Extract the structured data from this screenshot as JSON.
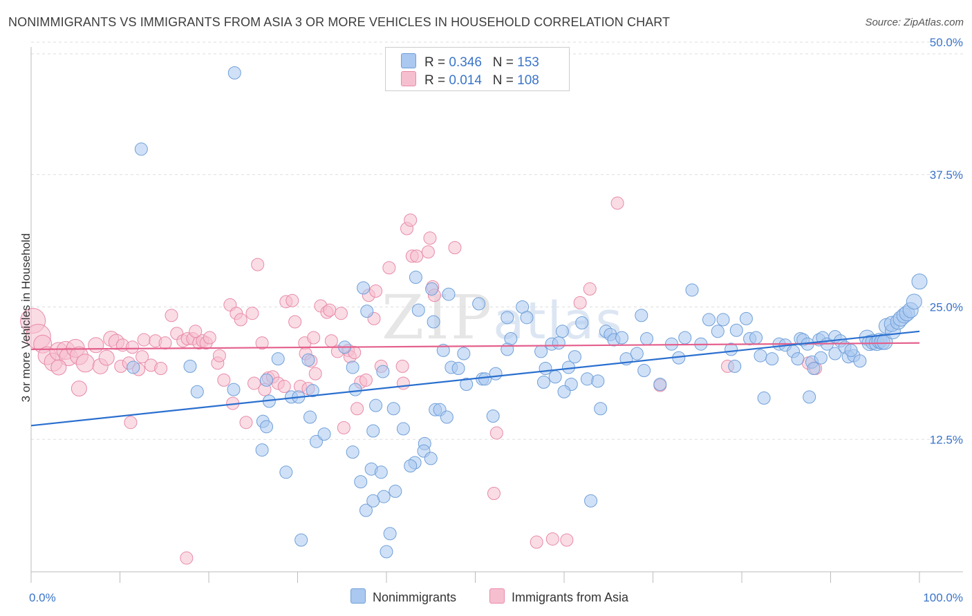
{
  "title": "NONIMMIGRANTS VS IMMIGRANTS FROM ASIA 3 OR MORE VEHICLES IN HOUSEHOLD CORRELATION CHART",
  "source": "Source: ZipAtlas.com",
  "watermark": {
    "zip": "ZIP",
    "atlas": "atlas"
  },
  "legend": {
    "series1": {
      "r_label": "R =",
      "r_value": "0.346",
      "n_label": "N =",
      "n_value": "153"
    },
    "series2": {
      "r_label": "R =",
      "r_value": "0.014",
      "n_label": "N =",
      "n_value": "108"
    }
  },
  "bottom_legend": {
    "series1": "Nonimmigrants",
    "series2": "Immigrants from Asia"
  },
  "colors": {
    "blue_fill": "#aac8f0",
    "blue_stroke": "#6f9fd8",
    "blue_line": "#2a6fcf",
    "pink_fill": "#f6bfd0",
    "pink_stroke": "#e88aa8",
    "pink_line": "#e4608c",
    "tick_label": "#3a74c9",
    "grid": "#dddddd"
  },
  "chart_data": {
    "type": "scatter",
    "title": "NONIMMIGRANTS VS IMMIGRANTS FROM ASIA 3 OR MORE VEHICLES IN HOUSEHOLD CORRELATION CHART",
    "xlabel": "",
    "ylabel": "3 or more Vehicles in Household",
    "xlim": [
      0,
      100
    ],
    "ylim": [
      0,
      51.5
    ],
    "x_tick_labels": [
      "0.0%",
      "100.0%"
    ],
    "y_ticks": [
      12.5,
      25.0,
      37.5,
      50.0
    ],
    "y_tick_labels": [
      "12.5%",
      "25.0%",
      "37.5%",
      "50.0%"
    ],
    "grid": true,
    "series": [
      {
        "name": "Nonimmigrants",
        "trend": [
          [
            0,
            13.8
          ],
          [
            100,
            22.7
          ]
        ],
        "points": [
          [
            22.9,
            47.1
          ],
          [
            12.4,
            39.9
          ],
          [
            11.5,
            19.3
          ],
          [
            17.9,
            19.4
          ],
          [
            18.7,
            17.0
          ],
          [
            22.8,
            17.2
          ],
          [
            26.0,
            11.5
          ],
          [
            26.1,
            14.2
          ],
          [
            26.8,
            16.1
          ],
          [
            26.5,
            13.7
          ],
          [
            27.8,
            20.1
          ],
          [
            26.5,
            18.1
          ],
          [
            29.3,
            16.5
          ],
          [
            30.1,
            16.5
          ],
          [
            31.4,
            14.6
          ],
          [
            32.1,
            12.3
          ],
          [
            31.2,
            20.0
          ],
          [
            31.7,
            17.1
          ],
          [
            33.0,
            13.0
          ],
          [
            36.2,
            19.3
          ],
          [
            36.5,
            17.2
          ],
          [
            35.3,
            21.2
          ],
          [
            37.4,
            26.8
          ],
          [
            37.8,
            24.6
          ],
          [
            39.6,
            18.9
          ],
          [
            38.8,
            15.7
          ],
          [
            38.5,
            13.3
          ],
          [
            40.8,
            15.4
          ],
          [
            41.9,
            13.5
          ],
          [
            43.2,
            10.3
          ],
          [
            44.3,
            12.1
          ],
          [
            44.2,
            11.4
          ],
          [
            45.0,
            10.7
          ],
          [
            42.7,
            10.0
          ],
          [
            38.3,
            9.7
          ],
          [
            36.2,
            11.3
          ],
          [
            37.1,
            8.5
          ],
          [
            39.4,
            9.4
          ],
          [
            37.7,
            5.8
          ],
          [
            39.7,
            7.1
          ],
          [
            38.5,
            6.7
          ],
          [
            41.0,
            7.6
          ],
          [
            40.4,
            3.6
          ],
          [
            40.0,
            1.9
          ],
          [
            30.4,
            3.0
          ],
          [
            28.7,
            9.4
          ],
          [
            45.1,
            26.7
          ],
          [
            47.0,
            26.2
          ],
          [
            46.4,
            20.9
          ],
          [
            43.6,
            24.7
          ],
          [
            43.3,
            27.8
          ],
          [
            45.3,
            23.6
          ],
          [
            45.5,
            15.3
          ],
          [
            46.0,
            15.3
          ],
          [
            46.8,
            14.6
          ],
          [
            47.3,
            19.3
          ],
          [
            48.7,
            20.6
          ],
          [
            48.1,
            19.2
          ],
          [
            49.0,
            17.7
          ],
          [
            50.8,
            18.2
          ],
          [
            52.0,
            14.7
          ],
          [
            50.4,
            25.3
          ],
          [
            51.1,
            18.2
          ],
          [
            53.6,
            24.0
          ],
          [
            54.0,
            22.0
          ],
          [
            53.6,
            21.0
          ],
          [
            52.3,
            18.7
          ],
          [
            55.3,
            25.0
          ],
          [
            55.8,
            24.0
          ],
          [
            57.4,
            20.8
          ],
          [
            57.7,
            17.9
          ],
          [
            57.9,
            19.2
          ],
          [
            58.6,
            21.5
          ],
          [
            59.0,
            18.4
          ],
          [
            59.8,
            22.7
          ],
          [
            59.4,
            21.6
          ],
          [
            60.8,
            17.7
          ],
          [
            60.5,
            19.3
          ],
          [
            61.2,
            20.3
          ],
          [
            62.0,
            23.5
          ],
          [
            62.6,
            18.2
          ],
          [
            63.8,
            18.0
          ],
          [
            64.7,
            22.7
          ],
          [
            65.2,
            22.4
          ],
          [
            65.6,
            21.9
          ],
          [
            63.0,
            6.7
          ],
          [
            66.5,
            22.1
          ],
          [
            67.0,
            20.1
          ],
          [
            68.2,
            20.6
          ],
          [
            68.7,
            24.2
          ],
          [
            69.3,
            22.0
          ],
          [
            69.0,
            19.0
          ],
          [
            70.8,
            17.7
          ],
          [
            72.1,
            21.5
          ],
          [
            72.9,
            20.2
          ],
          [
            73.6,
            22.1
          ],
          [
            74.4,
            26.6
          ],
          [
            75.4,
            21.5
          ],
          [
            76.3,
            23.8
          ],
          [
            77.3,
            22.7
          ],
          [
            77.9,
            23.8
          ],
          [
            78.8,
            21.0
          ],
          [
            79.4,
            22.8
          ],
          [
            79.2,
            19.4
          ],
          [
            80.5,
            23.9
          ],
          [
            80.9,
            22.0
          ],
          [
            81.6,
            22.1
          ],
          [
            82.1,
            20.4
          ],
          [
            82.5,
            16.4
          ],
          [
            83.4,
            20.1
          ],
          [
            84.2,
            21.5
          ],
          [
            84.9,
            21.4
          ],
          [
            85.8,
            20.8
          ],
          [
            86.6,
            22.0
          ],
          [
            86.9,
            21.9
          ],
          [
            86.3,
            20.1
          ],
          [
            87.4,
            21.5
          ],
          [
            87.9,
            19.8
          ],
          [
            88.7,
            21.9
          ],
          [
            88.1,
            19.2
          ],
          [
            89.1,
            22.1
          ],
          [
            89.6,
            21.5
          ],
          [
            88.9,
            20.2
          ],
          [
            90.5,
            22.2
          ],
          [
            90.5,
            20.6
          ],
          [
            91.1,
            21.8
          ],
          [
            91.6,
            21.2
          ],
          [
            92.0,
            20.3
          ],
          [
            92.6,
            20.4
          ],
          [
            93.3,
            19.9
          ],
          [
            92.3,
            20.9
          ],
          [
            94.1,
            22.1
          ],
          [
            94.4,
            21.6
          ],
          [
            94.8,
            21.7
          ],
          [
            95.2,
            21.6
          ],
          [
            95.5,
            21.8
          ],
          [
            95.8,
            21.7
          ],
          [
            96.1,
            21.7
          ],
          [
            96.3,
            23.2
          ],
          [
            97.0,
            22.7
          ],
          [
            96.9,
            23.4
          ],
          [
            97.6,
            23.6
          ],
          [
            97.9,
            23.9
          ],
          [
            98.3,
            24.2
          ],
          [
            98.6,
            24.4
          ],
          [
            99.0,
            24.7
          ],
          [
            99.4,
            25.5
          ],
          [
            100.0,
            27.4
          ],
          [
            64.1,
            15.4
          ],
          [
            87.6,
            16.5
          ],
          [
            60.0,
            17.0
          ]
        ]
      },
      {
        "name": "Immigrants from Asia",
        "trend": [
          [
            0,
            21.0
          ],
          [
            100,
            21.6
          ]
        ],
        "points": [
          [
            0.2,
            23.7
          ],
          [
            0.8,
            22.2
          ],
          [
            1.3,
            21.5
          ],
          [
            1.8,
            20.4
          ],
          [
            2.5,
            19.8
          ],
          [
            3.1,
            20.8
          ],
          [
            3.9,
            20.9
          ],
          [
            4.2,
            20.3
          ],
          [
            5.0,
            21.1
          ],
          [
            5.4,
            20.4
          ],
          [
            6.1,
            19.7
          ],
          [
            7.3,
            21.4
          ],
          [
            7.8,
            19.4
          ],
          [
            9.0,
            22.0
          ],
          [
            8.5,
            20.2
          ],
          [
            9.6,
            21.7
          ],
          [
            10.1,
            19.4
          ],
          [
            10.3,
            21.4
          ],
          [
            11.0,
            19.7
          ],
          [
            11.4,
            21.2
          ],
          [
            12.1,
            19.1
          ],
          [
            12.5,
            20.3
          ],
          [
            12.7,
            21.9
          ],
          [
            13.5,
            19.5
          ],
          [
            14.0,
            21.8
          ],
          [
            14.6,
            19.2
          ],
          [
            15.1,
            21.6
          ],
          [
            15.8,
            24.2
          ],
          [
            16.4,
            22.5
          ],
          [
            17.1,
            21.8
          ],
          [
            17.6,
            22.0
          ],
          [
            18.2,
            22.0
          ],
          [
            18.5,
            22.7
          ],
          [
            18.9,
            21.6
          ],
          [
            19.3,
            21.8
          ],
          [
            19.7,
            21.6
          ],
          [
            20.1,
            22.1
          ],
          [
            21.0,
            19.7
          ],
          [
            21.2,
            20.4
          ],
          [
            21.7,
            18.1
          ],
          [
            22.4,
            25.2
          ],
          [
            22.7,
            15.9
          ],
          [
            23.1,
            24.4
          ],
          [
            23.6,
            23.8
          ],
          [
            24.2,
            14.1
          ],
          [
            24.9,
            24.4
          ],
          [
            25.1,
            17.8
          ],
          [
            25.5,
            29.0
          ],
          [
            26.0,
            21.6
          ],
          [
            26.3,
            17.2
          ],
          [
            26.7,
            18.3
          ],
          [
            27.2,
            18.4
          ],
          [
            27.8,
            17.8
          ],
          [
            28.5,
            17.5
          ],
          [
            28.7,
            25.5
          ],
          [
            29.4,
            25.6
          ],
          [
            29.7,
            23.6
          ],
          [
            30.3,
            17.5
          ],
          [
            30.8,
            21.6
          ],
          [
            30.9,
            20.6
          ],
          [
            31.2,
            17.3
          ],
          [
            31.5,
            19.9
          ],
          [
            31.8,
            22.1
          ],
          [
            32.0,
            18.7
          ],
          [
            32.6,
            25.1
          ],
          [
            33.3,
            24.5
          ],
          [
            33.6,
            24.7
          ],
          [
            33.8,
            21.8
          ],
          [
            34.5,
            20.8
          ],
          [
            34.9,
            24.4
          ],
          [
            35.2,
            13.6
          ],
          [
            35.7,
            20.9
          ],
          [
            35.9,
            20.3
          ],
          [
            36.4,
            20.7
          ],
          [
            36.7,
            15.4
          ],
          [
            37.1,
            17.9
          ],
          [
            37.7,
            18.1
          ],
          [
            38.0,
            26.1
          ],
          [
            38.6,
            23.9
          ],
          [
            38.8,
            26.5
          ],
          [
            39.4,
            19.4
          ],
          [
            40.3,
            28.7
          ],
          [
            41.8,
            19.4
          ],
          [
            41.9,
            17.8
          ],
          [
            42.3,
            32.4
          ],
          [
            42.7,
            33.2
          ],
          [
            42.9,
            29.8
          ],
          [
            43.4,
            29.8
          ],
          [
            44.7,
            30.2
          ],
          [
            44.9,
            31.5
          ],
          [
            45.2,
            26.9
          ],
          [
            45.4,
            26.1
          ],
          [
            47.7,
            30.6
          ],
          [
            52.1,
            7.4
          ],
          [
            52.4,
            13.1
          ],
          [
            56.9,
            2.8
          ],
          [
            58.7,
            3.1
          ],
          [
            60.3,
            3.0
          ],
          [
            61.8,
            25.4
          ],
          [
            62.9,
            26.7
          ],
          [
            66.0,
            34.8
          ],
          [
            70.8,
            17.6
          ],
          [
            78.4,
            19.4
          ],
          [
            87.5,
            19.7
          ],
          [
            88.3,
            19.2
          ],
          [
            17.5,
            1.3
          ],
          [
            11.2,
            14.1
          ],
          [
            5.4,
            17.3
          ],
          [
            3.1,
            19.3
          ]
        ]
      }
    ]
  },
  "axis": {
    "x_min_label": "0.0%",
    "x_max_label": "100.0%",
    "y_label": "3 or more Vehicles in Household"
  }
}
